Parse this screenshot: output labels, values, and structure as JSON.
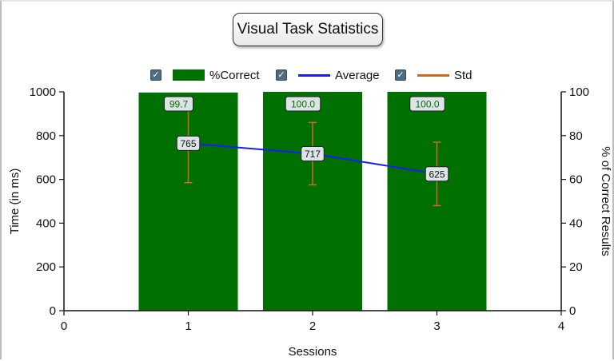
{
  "chart_data": {
    "type": "bar",
    "title": "Visual Task Statistics",
    "xlabel": "Sessions",
    "ylabel": "Time (in ms)",
    "y2label": "% of Correct Results",
    "xlim": [
      0,
      4
    ],
    "ylim": [
      0,
      1000
    ],
    "y2lim": [
      0,
      100
    ],
    "x_ticks": [
      "0",
      "1",
      "2",
      "3",
      "4"
    ],
    "y_ticks": [
      "0",
      "200",
      "400",
      "600",
      "800",
      "1000"
    ],
    "y2_ticks": [
      "0",
      "20",
      "40",
      "60",
      "80",
      "100"
    ],
    "x": [
      1,
      2,
      3
    ],
    "legend": {
      "position": "top",
      "entries": [
        "%Correct",
        "Average",
        "Std"
      ]
    },
    "series": [
      {
        "name": "%Correct",
        "type": "bar",
        "axis": "right",
        "color": "#007000",
        "values": [
          99.7,
          100.0,
          100.0
        ],
        "labels": [
          "99.7",
          "100.0",
          "100.0"
        ]
      },
      {
        "name": "Average",
        "type": "line",
        "axis": "left",
        "color": "#1a1aff",
        "values": [
          765,
          717,
          625
        ],
        "labels": [
          "765",
          "717",
          "625"
        ]
      },
      {
        "name": "Std",
        "type": "errorbar",
        "axis": "left",
        "color": "#d2691e",
        "low": [
          585,
          575,
          480
        ],
        "high": [
          945,
          860,
          770
        ]
      }
    ],
    "grid": false
  }
}
